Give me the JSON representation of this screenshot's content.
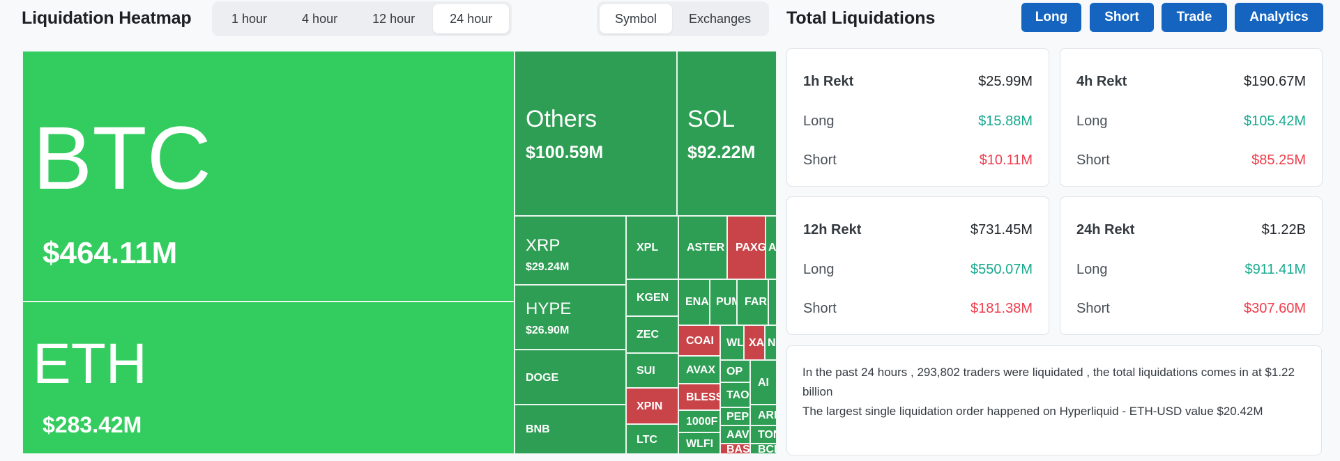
{
  "heatmap": {
    "title": "Liquidation Heatmap",
    "time_options": [
      "1 hour",
      "4 hour",
      "12 hour",
      "24 hour"
    ],
    "active_time": "24 hour",
    "view_options": [
      "Symbol",
      "Exchanges"
    ],
    "active_view": "Symbol",
    "big_tiles": [
      {
        "name": "BTC",
        "value": "$464.11M"
      },
      {
        "name": "ETH",
        "value": "$283.42M"
      },
      {
        "name": "Others",
        "value": "$100.59M"
      },
      {
        "name": "SOL",
        "value": "$92.22M"
      },
      {
        "name": "XRP",
        "value": "$29.24M"
      },
      {
        "name": "HYPE",
        "value": "$26.90M"
      }
    ],
    "small_tiles": [
      "DOGE",
      "BNB",
      "XPL",
      "ASTER",
      "PAXG",
      "A",
      "KGEN",
      "ENA",
      "PUM",
      "FAR",
      "ZEC",
      "COAI",
      "WL",
      "XA",
      "N",
      "SUI",
      "AVAX",
      "OP",
      "AI",
      "XPIN",
      "BLESS",
      "TAO",
      "ARI",
      "PEPE",
      "1000F",
      "AAVE",
      "TON",
      "LTC",
      "WLFI",
      "BAS",
      "BCH"
    ]
  },
  "totals": {
    "title": "Total Liquidations",
    "buttons": [
      "Long",
      "Short",
      "Trade",
      "Analytics"
    ],
    "cards": [
      {
        "label": "1h Rekt",
        "total": "$25.99M",
        "long_label": "Long",
        "long": "$15.88M",
        "short_label": "Short",
        "short": "$10.11M"
      },
      {
        "label": "4h Rekt",
        "total": "$190.67M",
        "long_label": "Long",
        "long": "$105.42M",
        "short_label": "Short",
        "short": "$85.25M"
      },
      {
        "label": "12h Rekt",
        "total": "$731.45M",
        "long_label": "Long",
        "long": "$550.07M",
        "short_label": "Short",
        "short": "$181.38M"
      },
      {
        "label": "24h Rekt",
        "total": "$1.22B",
        "long_label": "Long",
        "long": "$911.41M",
        "short_label": "Short",
        "short": "$307.60M"
      }
    ],
    "summary_line1": "In the past 24 hours , 293,802 traders were liquidated , the total liquidations comes in at $1.22 billion",
    "summary_line2": "The largest single liquidation order happened on Hyperliquid - ETH-USD value $20.42M"
  },
  "colors": {
    "long_green": "#17a98f",
    "short_red": "#ee3d4d",
    "tile_green_bright": "#33cc5f",
    "tile_green": "#2e9e54",
    "tile_red": "#c84448",
    "button_blue": "#1565c0"
  }
}
